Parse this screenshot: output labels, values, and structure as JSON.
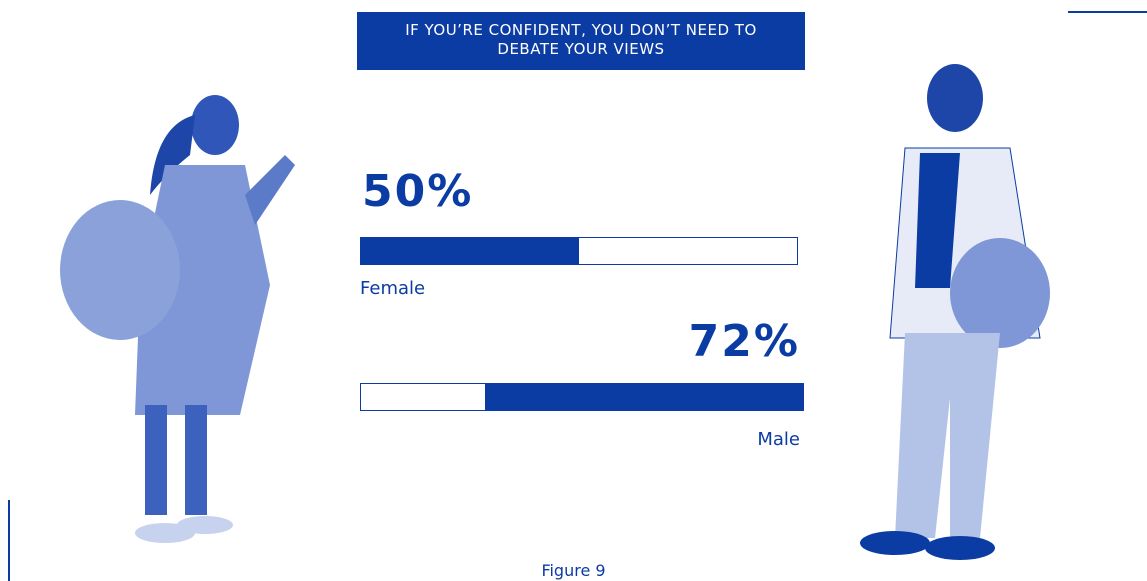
{
  "chart_data": {
    "type": "bar",
    "title": "IF YOU’RE CONFIDENT, YOU DON’T NEED TO DEBATE YOUR VIEWS",
    "categories": [
      "Female",
      "Male"
    ],
    "values": [
      50,
      72
    ],
    "value_labels": [
      "50%",
      "72%"
    ],
    "color": "#0b3ca3",
    "xlim": [
      0,
      100
    ]
  },
  "caption": "Figure 9"
}
